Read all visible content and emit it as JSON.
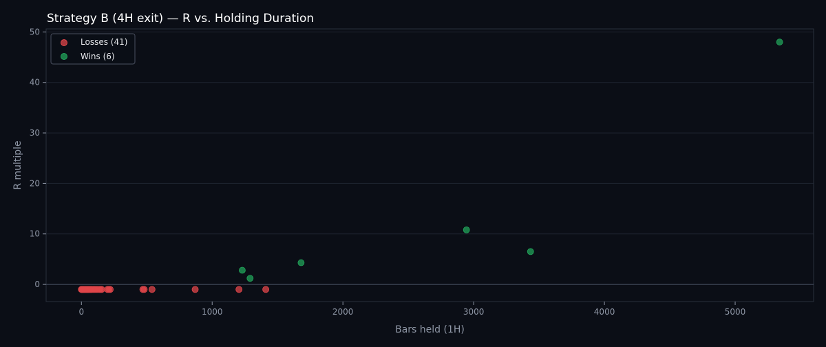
{
  "chart_data": {
    "type": "scatter",
    "title": "Strategy B (4H exit) — R vs. Holding Duration",
    "xlabel": "Bars held (1H)",
    "ylabel": "R multiple",
    "xlim": [
      -270,
      5600
    ],
    "ylim": [
      -3.4,
      50.6
    ],
    "xticks": [
      0,
      1000,
      2000,
      3000,
      4000,
      5000
    ],
    "yticks": [
      0,
      10,
      20,
      30,
      40,
      50
    ],
    "grid": "horizontal",
    "zero_line": 0,
    "legend_position": "top-left",
    "series": [
      {
        "name": "Losses (41)",
        "color": "#e0464a",
        "points": [
          [
            0,
            -1
          ],
          [
            3,
            -1
          ],
          [
            6,
            -1
          ],
          [
            9,
            -1
          ],
          [
            12,
            -1
          ],
          [
            15,
            -1
          ],
          [
            18,
            -1
          ],
          [
            21,
            -1
          ],
          [
            24,
            -1
          ],
          [
            27,
            -1
          ],
          [
            30,
            -1
          ],
          [
            33,
            -1
          ],
          [
            36,
            -1
          ],
          [
            40,
            -1
          ],
          [
            44,
            -1
          ],
          [
            48,
            -1
          ],
          [
            52,
            -1
          ],
          [
            56,
            -1
          ],
          [
            60,
            -1
          ],
          [
            65,
            -1
          ],
          [
            70,
            -1
          ],
          [
            75,
            -1
          ],
          [
            80,
            -1
          ],
          [
            90,
            -1
          ],
          [
            100,
            -1
          ],
          [
            110,
            -1
          ],
          [
            120,
            -1
          ],
          [
            135,
            -1
          ],
          [
            145,
            -1
          ],
          [
            155,
            -1
          ],
          [
            200,
            -1
          ],
          [
            210,
            -1
          ],
          [
            220,
            -1
          ],
          [
            470,
            -1
          ],
          [
            480,
            -1
          ],
          [
            540,
            -1
          ],
          [
            870,
            -1
          ],
          [
            1205,
            -1
          ],
          [
            1410,
            -1
          ],
          [
            2,
            -1
          ],
          [
            5,
            -1
          ]
        ]
      },
      {
        "name": "Wins (6)",
        "color": "#22a35a",
        "points": [
          [
            1230,
            2.8
          ],
          [
            1290,
            1.2
          ],
          [
            1680,
            4.3
          ],
          [
            2945,
            10.8
          ],
          [
            3435,
            6.5
          ],
          [
            5340,
            48
          ]
        ]
      }
    ]
  }
}
